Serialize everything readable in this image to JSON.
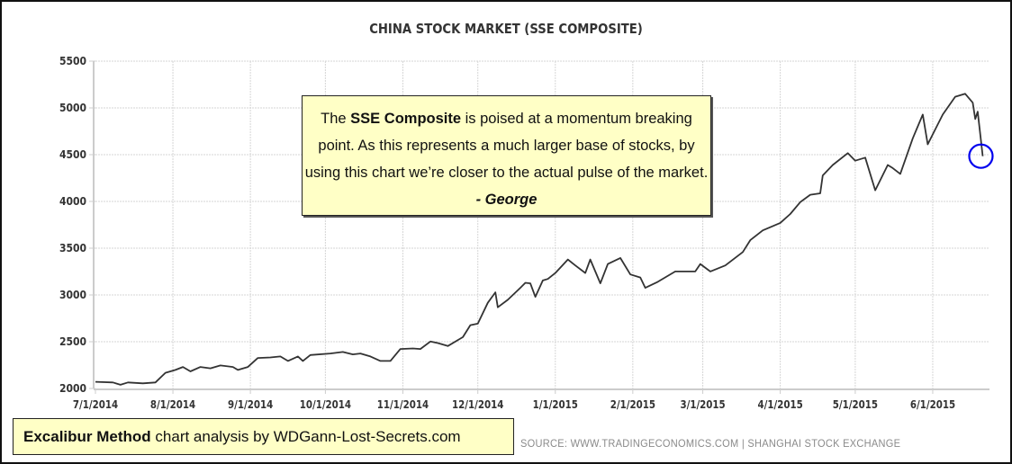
{
  "chart_data": {
    "type": "line",
    "title": "CHINA STOCK MARKET (SSE COMPOSITE)",
    "xlabel": "",
    "ylabel": "",
    "ylim": [
      2000,
      5500
    ],
    "yticks": [
      2000,
      2500,
      3000,
      3500,
      4000,
      4500,
      5000,
      5500
    ],
    "xlim": [
      "2014-07-01",
      "2015-06-25"
    ],
    "xticks": [
      "7/1/2014",
      "8/1/2014",
      "9/1/2014",
      "10/1/2014",
      "11/1/2014",
      "12/1/2014",
      "1/1/2015",
      "2/1/2015",
      "3/1/2015",
      "4/1/2015",
      "5/1/2015",
      "6/1/2015"
    ],
    "grid": true,
    "line_color": "#333333",
    "highlight_color": "#0000ee",
    "series": [
      {
        "name": "SSE Composite",
        "points": [
          [
            "2014-07-01",
            2071
          ],
          [
            "2014-07-08",
            2064
          ],
          [
            "2014-07-11",
            2039
          ],
          [
            "2014-07-14",
            2064
          ],
          [
            "2014-07-20",
            2055
          ],
          [
            "2014-07-25",
            2064
          ],
          [
            "2014-07-29",
            2167
          ],
          [
            "2014-08-02",
            2198
          ],
          [
            "2014-08-05",
            2230
          ],
          [
            "2014-08-08",
            2183
          ],
          [
            "2014-08-12",
            2230
          ],
          [
            "2014-08-16",
            2215
          ],
          [
            "2014-08-20",
            2246
          ],
          [
            "2014-08-25",
            2230
          ],
          [
            "2014-08-27",
            2198
          ],
          [
            "2014-08-31",
            2230
          ],
          [
            "2014-09-04",
            2326
          ],
          [
            "2014-09-09",
            2332
          ],
          [
            "2014-09-13",
            2342
          ],
          [
            "2014-09-16",
            2294
          ],
          [
            "2014-09-20",
            2342
          ],
          [
            "2014-09-22",
            2294
          ],
          [
            "2014-09-25",
            2358
          ],
          [
            "2014-10-03",
            2374
          ],
          [
            "2014-10-08",
            2390
          ],
          [
            "2014-10-12",
            2364
          ],
          [
            "2014-10-15",
            2374
          ],
          [
            "2014-10-19",
            2342
          ],
          [
            "2014-10-23",
            2294
          ],
          [
            "2014-10-27",
            2294
          ],
          [
            "2014-10-31",
            2422
          ],
          [
            "2014-11-05",
            2428
          ],
          [
            "2014-11-08",
            2422
          ],
          [
            "2014-11-12",
            2502
          ],
          [
            "2014-11-15",
            2486
          ],
          [
            "2014-11-19",
            2454
          ],
          [
            "2014-11-25",
            2549
          ],
          [
            "2014-11-28",
            2677
          ],
          [
            "2014-12-01",
            2693
          ],
          [
            "2014-12-05",
            2916
          ],
          [
            "2014-12-08",
            3028
          ],
          [
            "2014-12-09",
            2868
          ],
          [
            "2014-12-13",
            2948
          ],
          [
            "2014-12-18",
            3076
          ],
          [
            "2014-12-20",
            3130
          ],
          [
            "2014-12-22",
            3124
          ],
          [
            "2014-12-24",
            2980
          ],
          [
            "2014-12-27",
            3155
          ],
          [
            "2014-12-29",
            3171
          ],
          [
            "2015-01-01",
            3235
          ],
          [
            "2015-01-06",
            3379
          ],
          [
            "2015-01-09",
            3315
          ],
          [
            "2015-01-13",
            3235
          ],
          [
            "2015-01-15",
            3379
          ],
          [
            "2015-01-19",
            3124
          ],
          [
            "2015-01-22",
            3331
          ],
          [
            "2015-01-27",
            3395
          ],
          [
            "2015-01-31",
            3219
          ],
          [
            "2015-02-04",
            3187
          ],
          [
            "2015-02-06",
            3076
          ],
          [
            "2015-02-11",
            3140
          ],
          [
            "2015-02-18",
            3251
          ],
          [
            "2015-02-26",
            3251
          ],
          [
            "2015-02-28",
            3331
          ],
          [
            "2015-03-04",
            3251
          ],
          [
            "2015-03-10",
            3315
          ],
          [
            "2015-03-17",
            3459
          ],
          [
            "2015-03-20",
            3586
          ],
          [
            "2015-03-25",
            3690
          ],
          [
            "2015-04-01",
            3770
          ],
          [
            "2015-04-05",
            3865
          ],
          [
            "2015-04-09",
            3992
          ],
          [
            "2015-04-13",
            4071
          ],
          [
            "2015-04-17",
            4087
          ],
          [
            "2015-04-18",
            4278
          ],
          [
            "2015-04-22",
            4389
          ],
          [
            "2015-04-28",
            4516
          ],
          [
            "2015-05-01",
            4436
          ],
          [
            "2015-05-05",
            4468
          ],
          [
            "2015-05-09",
            4119
          ],
          [
            "2015-05-14",
            4389
          ],
          [
            "2015-05-16",
            4357
          ],
          [
            "2015-05-19",
            4294
          ],
          [
            "2015-05-24",
            4675
          ],
          [
            "2015-05-28",
            4929
          ],
          [
            "2015-05-30",
            4611
          ],
          [
            "2015-06-05",
            4929
          ],
          [
            "2015-06-10",
            5119
          ],
          [
            "2015-06-14",
            5151
          ],
          [
            "2015-06-17",
            5056
          ],
          [
            "2015-06-18",
            4881
          ],
          [
            "2015-06-19",
            4960
          ],
          [
            "2015-06-21",
            4484
          ]
        ]
      }
    ],
    "highlight_point": [
      "2015-06-21",
      4484
    ]
  },
  "annotation": {
    "pre": "The ",
    "bold": "SSE Composite",
    "post": " is poised at a momentum breaking point. As this  represents a much larger base of stocks, by using this chart we’re closer to the actual pulse of the market. ",
    "signature": "- George"
  },
  "credit": {
    "bold": "Excalibur Method",
    "rest": " chart analysis by WDGann-Lost-Secrets.com"
  },
  "source": "SOURCE:  WWW.TRADINGECONOMICS.COM  |  SHANGHAI  STOCK  EXCHANGE"
}
